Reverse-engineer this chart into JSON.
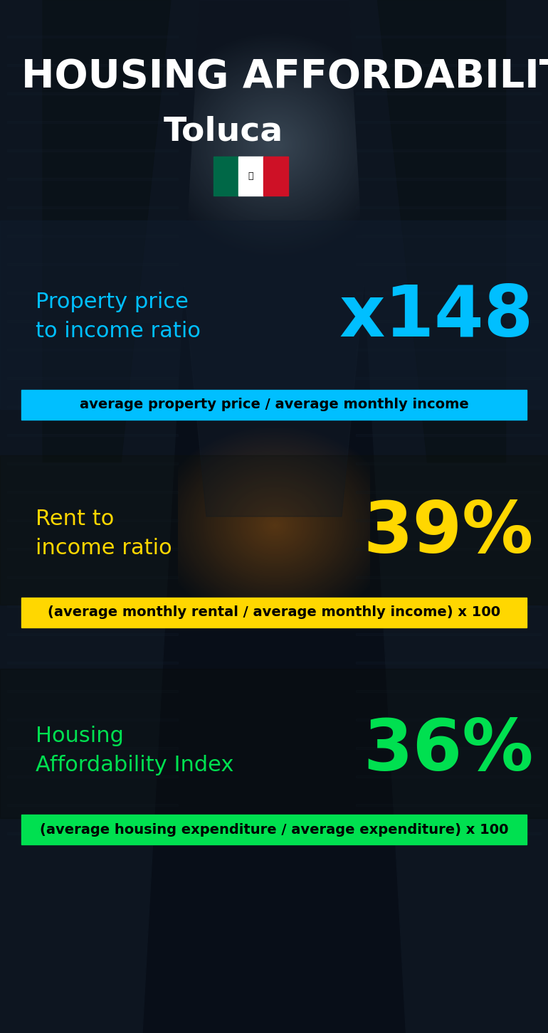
{
  "title_line1": "HOUSING AFFORDABILITY",
  "title_line2": "Toluca",
  "bg_color": "#080e18",
  "section1_label": "Property price\nto income ratio",
  "section1_value": "x148",
  "section1_label_color": "#00bfff",
  "section1_value_color": "#00bfff",
  "section1_banner_text": "average property price / average monthly income",
  "section1_banner_bg": "#00bfff",
  "section1_banner_text_color": "#000000",
  "section2_label": "Rent to\nincome ratio",
  "section2_value": "39%",
  "section2_label_color": "#ffd700",
  "section2_value_color": "#ffd700",
  "section2_banner_text": "(average monthly rental / average monthly income) x 100",
  "section2_banner_bg": "#ffd700",
  "section2_banner_text_color": "#000000",
  "section3_label": "Housing\nAffordability Index",
  "section3_value": "36%",
  "section3_label_color": "#00e050",
  "section3_value_color": "#00e050",
  "section3_banner_text": "(average housing expenditure / average expenditure) x 100",
  "section3_banner_bg": "#00e050",
  "section3_banner_text_color": "#000000",
  "flag_green": "#006847",
  "flag_white": "#ffffff",
  "flag_red": "#ce1126",
  "title_fontsize": 40,
  "subtitle_fontsize": 34,
  "label_fontsize": 22,
  "value_fontsize": 72,
  "banner_fontsize": 14
}
